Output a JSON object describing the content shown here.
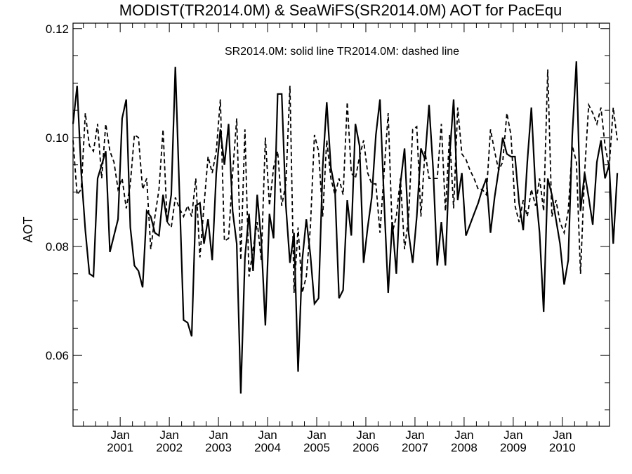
{
  "chart_data": {
    "type": "line",
    "title": "MODIST(TR2014.0M) & SeaWiFS(SR2014.0M)  AOT for PacEqu",
    "annotation": "SR2014.0M: solid line   TR2014.0M: dashed line",
    "ylabel": "AOT",
    "xlabel": "",
    "xlim": [
      2000.04,
      2010.96
    ],
    "ylim": [
      0.047,
      0.121
    ],
    "grid": false,
    "yticks": [
      {
        "value": 0.06,
        "label": "0.06"
      },
      {
        "value": 0.08,
        "label": "0.08"
      },
      {
        "value": 0.1,
        "label": "0.10"
      },
      {
        "value": 0.12,
        "label": "0.12"
      }
    ],
    "yminor_step": 0.005,
    "xticks": [
      {
        "value": 2001,
        "month": "Jan",
        "year": "2001"
      },
      {
        "value": 2002,
        "month": "Jan",
        "year": "2002"
      },
      {
        "value": 2003,
        "month": "Jan",
        "year": "2003"
      },
      {
        "value": 2004,
        "month": "Jan",
        "year": "2004"
      },
      {
        "value": 2005,
        "month": "Jan",
        "year": "2005"
      },
      {
        "value": 2006,
        "month": "Jan",
        "year": "2006"
      },
      {
        "value": 2007,
        "month": "Jan",
        "year": "2007"
      },
      {
        "value": 2008,
        "month": "Jan",
        "year": "2008"
      },
      {
        "value": 2009,
        "month": "Jan",
        "year": "2009"
      },
      {
        "value": 2010,
        "month": "Jan",
        "year": "2010"
      }
    ],
    "x_start": 2000.04,
    "x_step": 0.0833,
    "series": [
      {
        "name": "SR2014.0M",
        "style": "solid",
        "color": "#000000",
        "values": [
          0.1025,
          0.1095,
          0.0935,
          0.083,
          0.075,
          0.0745,
          0.0925,
          0.095,
          0.0975,
          0.079,
          0.082,
          0.085,
          0.1035,
          0.107,
          0.0835,
          0.0765,
          0.0755,
          0.0725,
          0.0865,
          0.0855,
          0.0825,
          0.082,
          0.0895,
          0.0845,
          0.0895,
          0.113,
          0.09,
          0.0665,
          0.066,
          0.0635,
          0.0875,
          0.088,
          0.0805,
          0.085,
          0.0775,
          0.0935,
          0.1015,
          0.095,
          0.1025,
          0.0865,
          0.0805,
          0.053,
          0.078,
          0.086,
          0.0755,
          0.0895,
          0.081,
          0.0655,
          0.086,
          0.0815,
          0.108,
          0.108,
          0.0875,
          0.077,
          0.0825,
          0.057,
          0.0775,
          0.085,
          0.0785,
          0.0695,
          0.0705,
          0.0945,
          0.1065,
          0.0945,
          0.0905,
          0.0705,
          0.072,
          0.0885,
          0.082,
          0.1025,
          0.0985,
          0.077,
          0.0835,
          0.089,
          0.1005,
          0.107,
          0.0885,
          0.0715,
          0.0845,
          0.075,
          0.0915,
          0.098,
          0.0825,
          0.077,
          0.0855,
          0.098,
          0.096,
          0.106,
          0.094,
          0.0765,
          0.0845,
          0.0765,
          0.0965,
          0.107,
          0.0885,
          0.0935,
          0.082,
          0.084,
          0.086,
          0.088,
          0.0905,
          0.0925,
          0.0825,
          0.089,
          0.094,
          0.1,
          0.097,
          0.0965,
          0.0965,
          0.088,
          0.083,
          0.0955,
          0.1055,
          0.0905,
          0.0825,
          0.068,
          0.0925,
          0.0895,
          0.085,
          0.0805,
          0.073,
          0.0775,
          0.1005,
          0.114,
          0.0865,
          0.0935,
          0.089,
          0.084,
          0.0955,
          0.0995,
          0.0925,
          0.095,
          0.0805,
          0.0935
        ]
      },
      {
        "name": "TR2014.0M",
        "style": "dashed",
        "color": "#000000",
        "values": [
          0.0995,
          0.0895,
          0.0905,
          0.1045,
          0.0985,
          0.0975,
          0.1025,
          0.0925,
          0.1025,
          0.0975,
          0.0955,
          0.0905,
          0.0925,
          0.087,
          0.0915,
          0.1005,
          0.1,
          0.0905,
          0.0925,
          0.0795,
          0.0855,
          0.0905,
          0.1015,
          0.0845,
          0.0835,
          0.089,
          0.087,
          0.0855,
          0.0875,
          0.0855,
          0.0925,
          0.078,
          0.0875,
          0.0965,
          0.0935,
          0.0975,
          0.107,
          0.081,
          0.0815,
          0.0935,
          0.1035,
          0.0775,
          0.1015,
          0.0745,
          0.0795,
          0.0845,
          0.0775,
          0.1,
          0.0875,
          0.0945,
          0.0975,
          0.0875,
          0.0915,
          0.1095,
          0.0715,
          0.0835,
          0.0715,
          0.0745,
          0.0835,
          0.1005,
          0.0975,
          0.0855,
          0.0995,
          0.0925,
          0.0895,
          0.0925,
          0.0895,
          0.1065,
          0.0935,
          0.0925,
          0.0965,
          0.0995,
          0.0935,
          0.0915,
          0.0915,
          0.0825,
          0.0935,
          0.1045,
          0.0825,
          0.0855,
          0.0925,
          0.0795,
          0.0855,
          0.1015,
          0.102,
          0.0855,
          0.0975,
          0.0925,
          0.0925,
          0.0925,
          0.1025,
          0.0865,
          0.1005,
          0.087,
          0.1055,
          0.097,
          0.096,
          0.094,
          0.0925,
          0.0905,
          0.0905,
          0.0895,
          0.1015,
          0.0975,
          0.094,
          0.0955,
          0.1045,
          0.1005,
          0.0875,
          0.0845,
          0.0885,
          0.0855,
          0.0905,
          0.0875,
          0.0925,
          0.0865,
          0.1125,
          0.0855,
          0.0885,
          0.0845,
          0.0825,
          0.0865,
          0.0985,
          0.0955,
          0.075,
          0.0935,
          0.106,
          0.1045,
          0.1025,
          0.1055,
          0.0985,
          0.0945,
          0.1055,
          0.0995
        ]
      }
    ]
  }
}
